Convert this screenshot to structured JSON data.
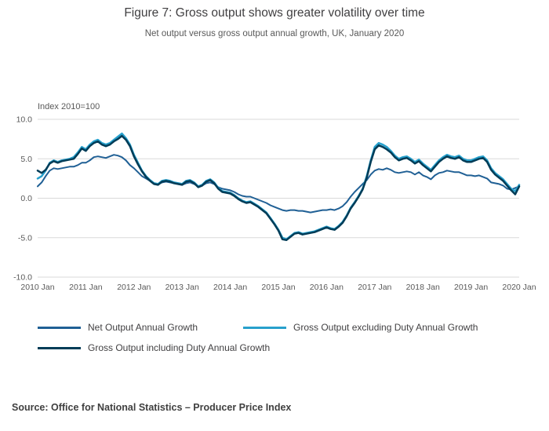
{
  "header": {
    "title": "Figure 7: Gross output shows greater volatility over time",
    "subtitle": "Net output versus gross output annual growth, UK, January 2020"
  },
  "source": "Source: Office for National Statistics – Producer Price Index",
  "chart_data": {
    "type": "line",
    "title": "Figure 7: Gross output shows greater volatility over time",
    "subtitle": "Net output versus gross output annual growth, UK, January 2020",
    "axis_note": "Index 2010=100",
    "ylim": [
      -10,
      10
    ],
    "y_ticks": [
      "10.0",
      "5.0",
      "0.0",
      "-5.0",
      "-10.0"
    ],
    "x_ticks": [
      "2010 Jan",
      "2011 Jan",
      "2012 Jan",
      "2013 Jan",
      "2014 Jan",
      "2015 Jan",
      "2016 Jan",
      "2017 Jan",
      "2018 Jan",
      "2019 Jan",
      "2020 Jan"
    ],
    "x_frequency": "monthly",
    "grid": "horizontal",
    "legend_position": "bottom",
    "gridline_color": "#d9d9d9",
    "tick_label_color": "#595959",
    "series": [
      {
        "name": "Net Output Annual Growth",
        "color": "#206095",
        "width": 2,
        "values": [
          1.5,
          2.0,
          2.8,
          3.5,
          3.8,
          3.7,
          3.8,
          3.9,
          4.0,
          4.0,
          4.2,
          4.5,
          4.5,
          4.8,
          5.2,
          5.3,
          5.2,
          5.1,
          5.3,
          5.5,
          5.4,
          5.2,
          4.8,
          4.2,
          3.8,
          3.3,
          2.8,
          2.5,
          2.2,
          1.9,
          1.8,
          2.0,
          2.1,
          2.0,
          1.9,
          1.8,
          1.7,
          1.9,
          2.0,
          1.8,
          1.5,
          1.6,
          1.9,
          2.0,
          1.8,
          1.4,
          1.2,
          1.1,
          1.0,
          0.8,
          0.5,
          0.3,
          0.2,
          0.2,
          0.0,
          -0.2,
          -0.4,
          -0.6,
          -0.9,
          -1.1,
          -1.3,
          -1.5,
          -1.6,
          -1.5,
          -1.5,
          -1.6,
          -1.6,
          -1.7,
          -1.8,
          -1.7,
          -1.6,
          -1.5,
          -1.5,
          -1.4,
          -1.5,
          -1.3,
          -1.0,
          -0.5,
          0.2,
          0.8,
          1.3,
          1.8,
          2.3,
          3.0,
          3.5,
          3.7,
          3.6,
          3.8,
          3.6,
          3.3,
          3.2,
          3.3,
          3.4,
          3.3,
          3.0,
          3.3,
          2.9,
          2.7,
          2.4,
          2.9,
          3.2,
          3.3,
          3.5,
          3.4,
          3.3,
          3.3,
          3.1,
          2.9,
          2.9,
          2.8,
          2.9,
          2.7,
          2.5,
          2.0,
          1.9,
          1.8,
          1.6,
          1.2,
          1.1,
          1.3,
          1.5
        ]
      },
      {
        "name": "Gross Output excluding Duty Annual Growth",
        "color": "#27a0cc",
        "width": 2.5,
        "values": [
          2.5,
          2.8,
          3.5,
          4.5,
          4.8,
          4.6,
          4.8,
          4.9,
          5.0,
          5.2,
          5.8,
          6.5,
          6.2,
          6.8,
          7.2,
          7.4,
          7.0,
          6.8,
          7.0,
          7.4,
          7.8,
          8.2,
          7.6,
          6.8,
          5.5,
          4.5,
          3.5,
          2.8,
          2.3,
          1.9,
          1.8,
          2.2,
          2.3,
          2.2,
          2.0,
          1.9,
          1.8,
          2.2,
          2.3,
          2.0,
          1.5,
          1.7,
          2.2,
          2.4,
          2.0,
          1.3,
          0.9,
          0.8,
          0.7,
          0.4,
          0.0,
          -0.3,
          -0.5,
          -0.4,
          -0.7,
          -1.0,
          -1.4,
          -1.8,
          -2.5,
          -3.2,
          -4.0,
          -5.0,
          -5.2,
          -4.8,
          -4.4,
          -4.3,
          -4.5,
          -4.4,
          -4.3,
          -4.2,
          -4.0,
          -3.8,
          -3.6,
          -3.8,
          -3.9,
          -3.5,
          -3.0,
          -2.2,
          -1.2,
          -0.5,
          0.3,
          1.2,
          2.8,
          4.8,
          6.5,
          7.0,
          6.8,
          6.5,
          6.0,
          5.4,
          5.0,
          5.2,
          5.3,
          5.0,
          4.6,
          4.9,
          4.4,
          4.0,
          3.6,
          4.2,
          4.8,
          5.2,
          5.5,
          5.3,
          5.2,
          5.4,
          5.0,
          4.8,
          4.8,
          5.0,
          5.2,
          5.3,
          4.8,
          3.8,
          3.2,
          2.8,
          2.4,
          1.8,
          1.2,
          0.9,
          1.7
        ]
      },
      {
        "name": "Gross Output including Duty Annual Growth",
        "color": "#003c57",
        "width": 2.5,
        "values": [
          3.5,
          3.2,
          3.6,
          4.4,
          4.7,
          4.5,
          4.7,
          4.8,
          4.9,
          5.0,
          5.6,
          6.3,
          6.0,
          6.6,
          7.0,
          7.2,
          6.8,
          6.6,
          6.8,
          7.2,
          7.5,
          7.9,
          7.4,
          6.6,
          5.3,
          4.3,
          3.4,
          2.7,
          2.2,
          1.8,
          1.7,
          2.1,
          2.2,
          2.1,
          1.9,
          1.8,
          1.7,
          2.1,
          2.2,
          1.9,
          1.4,
          1.6,
          2.1,
          2.3,
          1.9,
          1.2,
          0.8,
          0.7,
          0.6,
          0.3,
          -0.1,
          -0.4,
          -0.6,
          -0.5,
          -0.8,
          -1.1,
          -1.5,
          -1.9,
          -2.6,
          -3.3,
          -4.1,
          -5.2,
          -5.3,
          -4.9,
          -4.5,
          -4.4,
          -4.6,
          -4.5,
          -4.4,
          -4.3,
          -4.1,
          -3.9,
          -3.7,
          -3.9,
          -4.0,
          -3.6,
          -3.1,
          -2.3,
          -1.3,
          -0.6,
          0.2,
          1.1,
          2.6,
          4.6,
          6.2,
          6.7,
          6.5,
          6.2,
          5.8,
          5.2,
          4.8,
          5.0,
          5.1,
          4.8,
          4.4,
          4.7,
          4.2,
          3.8,
          3.4,
          4.0,
          4.6,
          5.0,
          5.3,
          5.1,
          5.0,
          5.2,
          4.8,
          4.6,
          4.6,
          4.8,
          5.0,
          5.1,
          4.6,
          3.6,
          3.0,
          2.6,
          2.2,
          1.6,
          1.0,
          0.5,
          1.5
        ]
      }
    ]
  }
}
